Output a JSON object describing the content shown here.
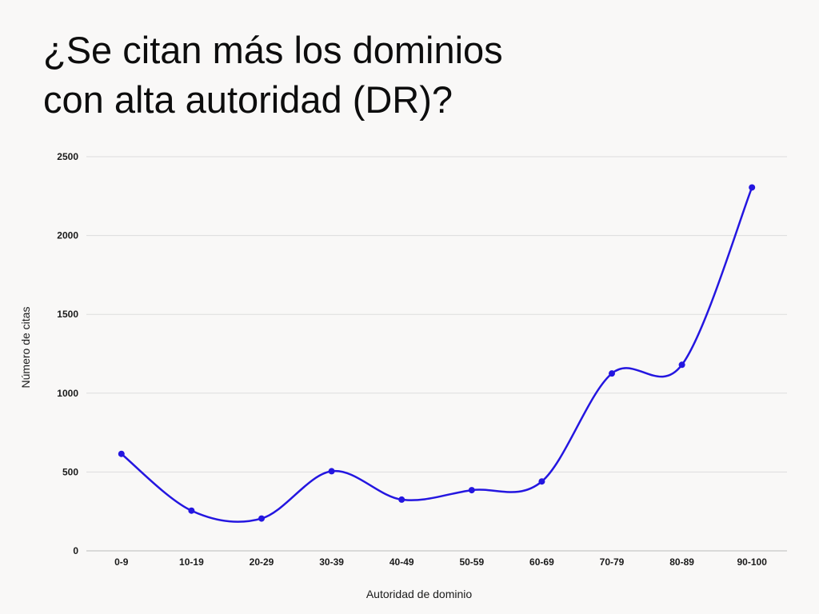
{
  "title_lines": [
    "¿Se citan más los dominios",
    "con alta autoridad (DR)?"
  ],
  "colors": {
    "background": "#f9f8f7",
    "line": "#2416e0",
    "grid": "#dddddd",
    "axis": "#bbbbbb",
    "text": "#1a1a1a"
  },
  "chart_data": {
    "type": "line",
    "title": "¿Se citan más los dominios con alta autoridad (DR)?",
    "xlabel": "Autoridad de dominio",
    "ylabel": "Número de citas",
    "categories": [
      "0-9",
      "10-19",
      "20-29",
      "30-39",
      "40-49",
      "50-59",
      "60-69",
      "70-79",
      "80-89",
      "90-100"
    ],
    "series": [
      {
        "values": [
          615,
          255,
          205,
          505,
          325,
          385,
          440,
          1125,
          1180,
          2305
        ]
      }
    ],
    "ylim": [
      0,
      2500
    ],
    "yticks": [
      0,
      500,
      1000,
      1500,
      2000,
      2500
    ],
    "grid": true,
    "smooth": true,
    "markers": true,
    "legend": "none"
  }
}
